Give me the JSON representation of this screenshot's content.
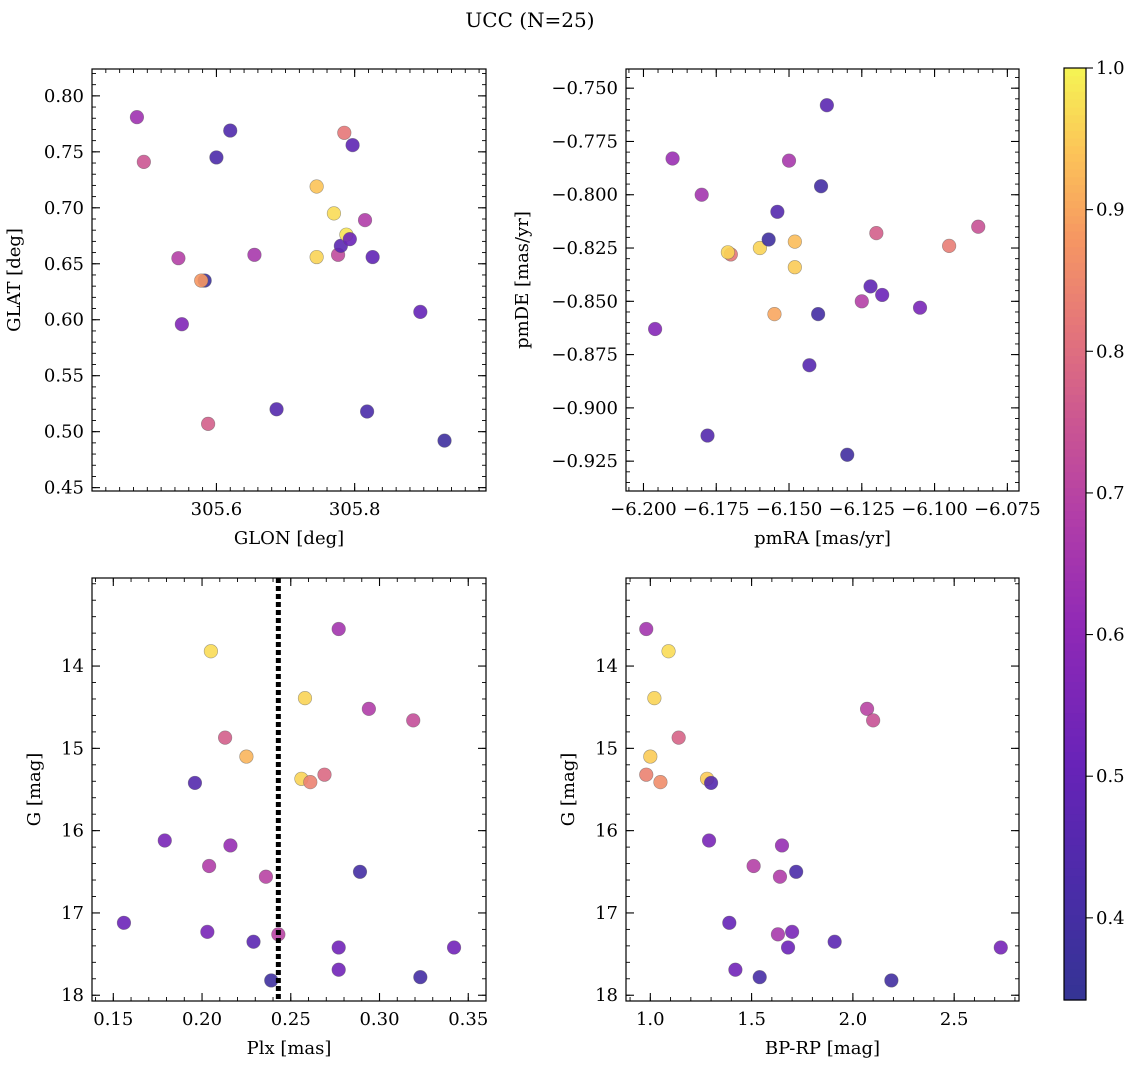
{
  "title": "UCC (N=25)",
  "colorbar": {
    "range": [
      0.342,
      1.0
    ],
    "ticks": [
      0.4,
      0.5,
      0.6,
      0.7,
      0.8,
      0.9,
      1.0
    ],
    "tick_labels": [
      "0.4",
      "0.5",
      "0.6",
      "0.7",
      "0.8",
      "0.9",
      "1.0"
    ],
    "colormap": "plasma"
  },
  "chart_data": [
    {
      "id": "glon-glat",
      "type": "scatter",
      "xlabel": "GLON [deg]",
      "ylabel": "GLAT [deg]",
      "xlim": [
        305.42,
        305.99
      ],
      "ylim": [
        0.447,
        0.824
      ],
      "x_ticks": [
        305.6,
        305.8
      ],
      "x_tick_labels": [
        "305.6",
        "305.8"
      ],
      "x_minor_step": 0.02,
      "y_ticks": [
        0.45,
        0.5,
        0.55,
        0.6,
        0.65,
        0.7,
        0.75,
        0.8
      ],
      "y_tick_labels": [
        "0.45",
        "0.50",
        "0.55",
        "0.60",
        "0.65",
        "0.70",
        "0.75",
        "0.80"
      ],
      "y_minor_step": 0.01,
      "invert_y": false,
      "points": [
        {
          "x": 305.485,
          "y": 0.781,
          "c": 0.64
        },
        {
          "x": 305.495,
          "y": 0.741,
          "c": 0.75
        },
        {
          "x": 305.545,
          "y": 0.655,
          "c": 0.69
        },
        {
          "x": 305.55,
          "y": 0.596,
          "c": 0.57
        },
        {
          "x": 305.583,
          "y": 0.635,
          "c": 0.37
        },
        {
          "x": 305.578,
          "y": 0.635,
          "c": 0.88
        },
        {
          "x": 305.588,
          "y": 0.507,
          "c": 0.77
        },
        {
          "x": 305.6,
          "y": 0.745,
          "c": 0.43
        },
        {
          "x": 305.62,
          "y": 0.769,
          "c": 0.44
        },
        {
          "x": 305.655,
          "y": 0.658,
          "c": 0.66
        },
        {
          "x": 305.687,
          "y": 0.52,
          "c": 0.45
        },
        {
          "x": 305.745,
          "y": 0.719,
          "c": 0.94
        },
        {
          "x": 305.745,
          "y": 0.656,
          "c": 0.96
        },
        {
          "x": 305.77,
          "y": 0.695,
          "c": 0.97
        },
        {
          "x": 305.776,
          "y": 0.658,
          "c": 0.72
        },
        {
          "x": 305.78,
          "y": 0.666,
          "c": 0.47
        },
        {
          "x": 305.785,
          "y": 0.767,
          "c": 0.82
        },
        {
          "x": 305.788,
          "y": 0.676,
          "c": 0.98
        },
        {
          "x": 305.793,
          "y": 0.672,
          "c": 0.52
        },
        {
          "x": 305.797,
          "y": 0.756,
          "c": 0.48
        },
        {
          "x": 305.815,
          "y": 0.689,
          "c": 0.68
        },
        {
          "x": 305.818,
          "y": 0.518,
          "c": 0.42
        },
        {
          "x": 305.826,
          "y": 0.656,
          "c": 0.49
        },
        {
          "x": 305.895,
          "y": 0.607,
          "c": 0.5
        },
        {
          "x": 305.93,
          "y": 0.492,
          "c": 0.38
        }
      ]
    },
    {
      "id": "pmra-pmde",
      "type": "scatter",
      "xlabel": "pmRA [mas/yr]",
      "ylabel": "pmDE [mas/yr]",
      "xlim": [
        -6.206,
        -6.071
      ],
      "ylim": [
        -0.939,
        -0.741
      ],
      "x_ticks": [
        -6.2,
        -6.175,
        -6.15,
        -6.125,
        -6.1,
        -6.075
      ],
      "x_tick_labels": [
        "−6.200",
        "−6.175",
        "−6.150",
        "−6.125",
        "−6.100",
        "−6.075"
      ],
      "x_minor_step": 0.005,
      "y_ticks": [
        -0.925,
        -0.9,
        -0.875,
        -0.85,
        -0.825,
        -0.8,
        -0.775,
        -0.75
      ],
      "y_tick_labels": [
        "−0.925",
        "−0.900",
        "−0.875",
        "−0.850",
        "−0.825",
        "−0.800",
        "−0.775",
        "−0.750"
      ],
      "y_minor_step": 0.005,
      "invert_y": false,
      "points": [
        {
          "x": -6.196,
          "y": -0.863,
          "c": 0.58
        },
        {
          "x": -6.19,
          "y": -0.783,
          "c": 0.63
        },
        {
          "x": -6.18,
          "y": -0.8,
          "c": 0.65
        },
        {
          "x": -6.178,
          "y": -0.913,
          "c": 0.45
        },
        {
          "x": -6.17,
          "y": -0.828,
          "c": 0.82
        },
        {
          "x": -6.171,
          "y": -0.827,
          "c": 0.96
        },
        {
          "x": -6.16,
          "y": -0.825,
          "c": 0.96
        },
        {
          "x": -6.157,
          "y": -0.821,
          "c": 0.38
        },
        {
          "x": -6.155,
          "y": -0.856,
          "c": 0.9
        },
        {
          "x": -6.154,
          "y": -0.808,
          "c": 0.45
        },
        {
          "x": -6.15,
          "y": -0.784,
          "c": 0.66
        },
        {
          "x": -6.148,
          "y": -0.834,
          "c": 0.95
        },
        {
          "x": -6.148,
          "y": -0.822,
          "c": 0.93
        },
        {
          "x": -6.14,
          "y": -0.856,
          "c": 0.4
        },
        {
          "x": -6.139,
          "y": -0.796,
          "c": 0.4
        },
        {
          "x": -6.137,
          "y": -0.758,
          "c": 0.47
        },
        {
          "x": -6.143,
          "y": -0.88,
          "c": 0.46
        },
        {
          "x": -6.13,
          "y": -0.922,
          "c": 0.39
        },
        {
          "x": -6.125,
          "y": -0.85,
          "c": 0.69
        },
        {
          "x": -6.122,
          "y": -0.843,
          "c": 0.48
        },
        {
          "x": -6.12,
          "y": -0.818,
          "c": 0.77
        },
        {
          "x": -6.118,
          "y": -0.847,
          "c": 0.52
        },
        {
          "x": -6.105,
          "y": -0.853,
          "c": 0.55
        },
        {
          "x": -6.095,
          "y": -0.824,
          "c": 0.83
        },
        {
          "x": -6.085,
          "y": -0.815,
          "c": 0.74
        }
      ]
    },
    {
      "id": "plx-g",
      "type": "scatter",
      "xlabel": "Plx [mas]",
      "ylabel": "G [mag]",
      "xlim": [
        0.138,
        0.36
      ],
      "ylim": [
        18.07,
        12.93
      ],
      "x_ticks": [
        0.15,
        0.2,
        0.25,
        0.3,
        0.35
      ],
      "x_tick_labels": [
        "0.15",
        "0.20",
        "0.25",
        "0.30",
        "0.35"
      ],
      "x_minor_step": 0.01,
      "y_ticks": [
        14,
        15,
        16,
        17,
        18
      ],
      "y_tick_labels": [
        "14",
        "15",
        "16",
        "17",
        "18"
      ],
      "y_minor_step": 0.2,
      "invert_y": true,
      "vline": 0.243,
      "points": [
        {
          "x": 0.156,
          "y": 17.12,
          "c": 0.52
        },
        {
          "x": 0.179,
          "y": 16.12,
          "c": 0.55
        },
        {
          "x": 0.196,
          "y": 15.42,
          "c": 0.45
        },
        {
          "x": 0.203,
          "y": 17.23,
          "c": 0.55
        },
        {
          "x": 0.204,
          "y": 16.43,
          "c": 0.68
        },
        {
          "x": 0.205,
          "y": 13.82,
          "c": 0.97
        },
        {
          "x": 0.213,
          "y": 14.87,
          "c": 0.77
        },
        {
          "x": 0.216,
          "y": 16.18,
          "c": 0.62
        },
        {
          "x": 0.225,
          "y": 15.1,
          "c": 0.92
        },
        {
          "x": 0.229,
          "y": 17.35,
          "c": 0.47
        },
        {
          "x": 0.236,
          "y": 16.56,
          "c": 0.7
        },
        {
          "x": 0.239,
          "y": 17.82,
          "c": 0.38
        },
        {
          "x": 0.243,
          "y": 17.26,
          "c": 0.7
        },
        {
          "x": 0.256,
          "y": 15.37,
          "c": 0.96
        },
        {
          "x": 0.258,
          "y": 14.39,
          "c": 0.96
        },
        {
          "x": 0.261,
          "y": 15.41,
          "c": 0.84
        },
        {
          "x": 0.269,
          "y": 15.32,
          "c": 0.79
        },
        {
          "x": 0.277,
          "y": 13.55,
          "c": 0.65
        },
        {
          "x": 0.277,
          "y": 17.42,
          "c": 0.53
        },
        {
          "x": 0.277,
          "y": 17.69,
          "c": 0.53
        },
        {
          "x": 0.289,
          "y": 16.5,
          "c": 0.4
        },
        {
          "x": 0.294,
          "y": 14.52,
          "c": 0.68
        },
        {
          "x": 0.319,
          "y": 14.66,
          "c": 0.73
        },
        {
          "x": 0.323,
          "y": 17.78,
          "c": 0.4
        },
        {
          "x": 0.342,
          "y": 17.42,
          "c": 0.53
        }
      ]
    },
    {
      "id": "bprp-g",
      "type": "scatter",
      "xlabel": "BP-RP [mag]",
      "ylabel": "G [mag]",
      "xlim": [
        0.88,
        2.82
      ],
      "ylim": [
        18.07,
        12.93
      ],
      "x_ticks": [
        1.0,
        1.5,
        2.0,
        2.5
      ],
      "x_tick_labels": [
        "1.0",
        "1.5",
        "2.0",
        "2.5"
      ],
      "x_minor_step": 0.1,
      "y_ticks": [
        14,
        15,
        16,
        17,
        18
      ],
      "y_tick_labels": [
        "14",
        "15",
        "16",
        "17",
        "18"
      ],
      "y_minor_step": 0.2,
      "invert_y": true,
      "points": [
        {
          "x": 0.98,
          "y": 13.55,
          "c": 0.65
        },
        {
          "x": 0.98,
          "y": 15.32,
          "c": 0.84
        },
        {
          "x": 1.0,
          "y": 15.1,
          "c": 0.95
        },
        {
          "x": 1.02,
          "y": 14.39,
          "c": 0.96
        },
        {
          "x": 1.05,
          "y": 15.41,
          "c": 0.86
        },
        {
          "x": 1.09,
          "y": 13.82,
          "c": 0.97
        },
        {
          "x": 1.14,
          "y": 14.87,
          "c": 0.78
        },
        {
          "x": 1.28,
          "y": 15.37,
          "c": 0.95
        },
        {
          "x": 1.29,
          "y": 16.12,
          "c": 0.55
        },
        {
          "x": 1.3,
          "y": 15.42,
          "c": 0.45
        },
        {
          "x": 1.39,
          "y": 17.12,
          "c": 0.5
        },
        {
          "x": 1.42,
          "y": 17.69,
          "c": 0.53
        },
        {
          "x": 1.51,
          "y": 16.43,
          "c": 0.69
        },
        {
          "x": 1.54,
          "y": 17.78,
          "c": 0.41
        },
        {
          "x": 1.63,
          "y": 17.26,
          "c": 0.66
        },
        {
          "x": 1.64,
          "y": 16.56,
          "c": 0.68
        },
        {
          "x": 1.65,
          "y": 16.18,
          "c": 0.62
        },
        {
          "x": 1.68,
          "y": 17.42,
          "c": 0.52
        },
        {
          "x": 1.7,
          "y": 17.23,
          "c": 0.55
        },
        {
          "x": 1.72,
          "y": 16.5,
          "c": 0.42
        },
        {
          "x": 1.91,
          "y": 17.35,
          "c": 0.47
        },
        {
          "x": 2.07,
          "y": 14.52,
          "c": 0.7
        },
        {
          "x": 2.1,
          "y": 14.66,
          "c": 0.74
        },
        {
          "x": 2.19,
          "y": 17.82,
          "c": 0.39
        },
        {
          "x": 2.73,
          "y": 17.42,
          "c": 0.54
        }
      ]
    }
  ]
}
